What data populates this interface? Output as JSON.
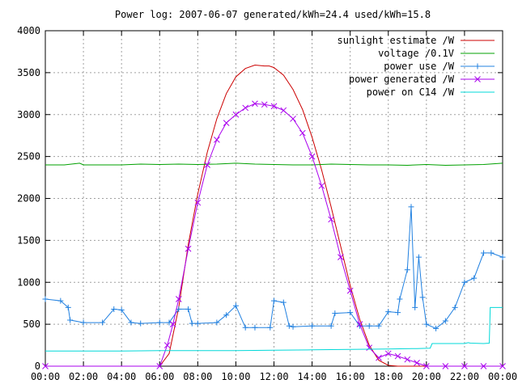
{
  "chart_data": {
    "type": "line",
    "title": "Power log: 2007-06-07 generated/kWh=24.4 used/kWh=15.8",
    "xlabel": "",
    "ylabel": "",
    "x_unit": "hours",
    "xlim": [
      0,
      24
    ],
    "ylim": [
      0,
      4000
    ],
    "x_ticks": [
      0,
      2,
      4,
      6,
      8,
      10,
      12,
      14,
      16,
      18,
      20,
      22,
      24
    ],
    "x_tick_labels": [
      "00:00",
      "02:00",
      "04:00",
      "06:00",
      "08:00",
      "10:00",
      "12:00",
      "14:00",
      "16:00",
      "18:00",
      "20:00",
      "22:00",
      "00:00"
    ],
    "y_ticks": [
      0,
      500,
      1000,
      1500,
      2000,
      2500,
      3000,
      3500,
      4000
    ],
    "y_tick_labels": [
      "0",
      "500",
      "1000",
      "1500",
      "2000",
      "2500",
      "3000",
      "3500",
      "4000"
    ],
    "grid": true,
    "legend_position": "top-right",
    "series": [
      {
        "name": "sunlight estimate /W",
        "color": "#cc0000",
        "style": "line",
        "x": [
          6.0,
          6.5,
          7.0,
          7.5,
          8.0,
          8.5,
          9.0,
          9.5,
          10.0,
          10.5,
          11.0,
          11.5,
          11.75,
          12.0,
          12.5,
          13.0,
          13.5,
          14.0,
          14.5,
          15.0,
          15.5,
          16.0,
          16.5,
          17.0,
          17.5,
          18.0,
          18.5,
          19.0,
          19.5,
          20.0
        ],
        "y": [
          0,
          150,
          700,
          1450,
          2050,
          2550,
          2950,
          3250,
          3450,
          3550,
          3590,
          3580,
          3580,
          3560,
          3470,
          3300,
          3060,
          2730,
          2340,
          1900,
          1430,
          960,
          560,
          250,
          70,
          10,
          0,
          0,
          0,
          0
        ]
      },
      {
        "name": "voltage /0.1V",
        "color": "#00a000",
        "style": "line",
        "x": [
          0,
          1,
          1.8,
          2,
          3,
          4,
          5,
          6,
          7,
          8,
          9,
          10,
          11,
          12,
          13,
          14,
          15,
          16,
          17,
          18,
          19,
          20,
          21,
          22,
          23,
          24
        ],
        "y": [
          2400,
          2400,
          2420,
          2400,
          2400,
          2400,
          2410,
          2405,
          2410,
          2405,
          2410,
          2420,
          2410,
          2405,
          2400,
          2400,
          2410,
          2405,
          2400,
          2400,
          2395,
          2405,
          2395,
          2400,
          2405,
          2420
        ]
      },
      {
        "name": "power use /W",
        "color": "#2080e0",
        "style": "line+plus",
        "x": [
          0,
          0.8,
          1.2,
          1.3,
          2,
          3,
          3.6,
          4,
          4.5,
          5,
          6,
          6.5,
          7,
          7.5,
          7.7,
          8,
          9,
          9.5,
          10,
          10.5,
          11,
          11.8,
          12,
          12.5,
          12.8,
          13,
          14,
          15,
          15.2,
          16,
          16.5,
          17,
          17.5,
          18,
          18.5,
          18.6,
          19,
          19.2,
          19.4,
          19.6,
          19.8,
          20,
          20.5,
          21,
          21.5,
          22,
          22.5,
          23,
          23.4,
          24
        ],
        "y": [
          800,
          780,
          700,
          550,
          520,
          520,
          680,
          670,
          520,
          510,
          520,
          520,
          680,
          680,
          510,
          510,
          520,
          610,
          720,
          460,
          460,
          460,
          780,
          760,
          480,
          470,
          480,
          480,
          630,
          640,
          480,
          480,
          480,
          650,
          640,
          800,
          1150,
          1900,
          700,
          1300,
          820,
          500,
          450,
          540,
          700,
          1000,
          1050,
          1350,
          1350,
          1300
        ]
      },
      {
        "name": "power generated /W",
        "color": "#aa00ee",
        "style": "line+cross",
        "x": [
          0,
          6.0,
          6.4,
          6.7,
          7.0,
          7.5,
          8.0,
          8.5,
          9.0,
          9.5,
          10.0,
          10.5,
          11.0,
          11.5,
          12.0,
          12.5,
          13.0,
          13.5,
          14.0,
          14.5,
          15.0,
          15.5,
          16.0,
          16.5,
          17.0,
          17.5,
          18.0,
          18.5,
          19.0,
          19.5,
          20.0,
          21.0,
          22.0,
          23.0,
          24.0
        ],
        "y": [
          0,
          0,
          250,
          500,
          800,
          1400,
          1950,
          2400,
          2700,
          2900,
          3000,
          3080,
          3130,
          3120,
          3100,
          3050,
          2950,
          2780,
          2500,
          2150,
          1750,
          1300,
          900,
          500,
          220,
          100,
          150,
          120,
          80,
          40,
          0,
          0,
          0,
          0,
          0
        ]
      },
      {
        "name": "power on C14 /W",
        "color": "#00d8d8",
        "style": "line",
        "x": [
          0,
          2,
          4,
          6,
          8,
          10,
          12,
          14,
          16,
          18,
          19.5,
          20.2,
          20.3,
          21,
          22,
          22.2,
          22.3,
          23,
          23.3,
          23.35,
          24
        ],
        "y": [
          180,
          180,
          180,
          185,
          185,
          185,
          190,
          195,
          200,
          205,
          210,
          215,
          270,
          270,
          270,
          280,
          275,
          270,
          275,
          700,
          700
        ]
      }
    ]
  }
}
